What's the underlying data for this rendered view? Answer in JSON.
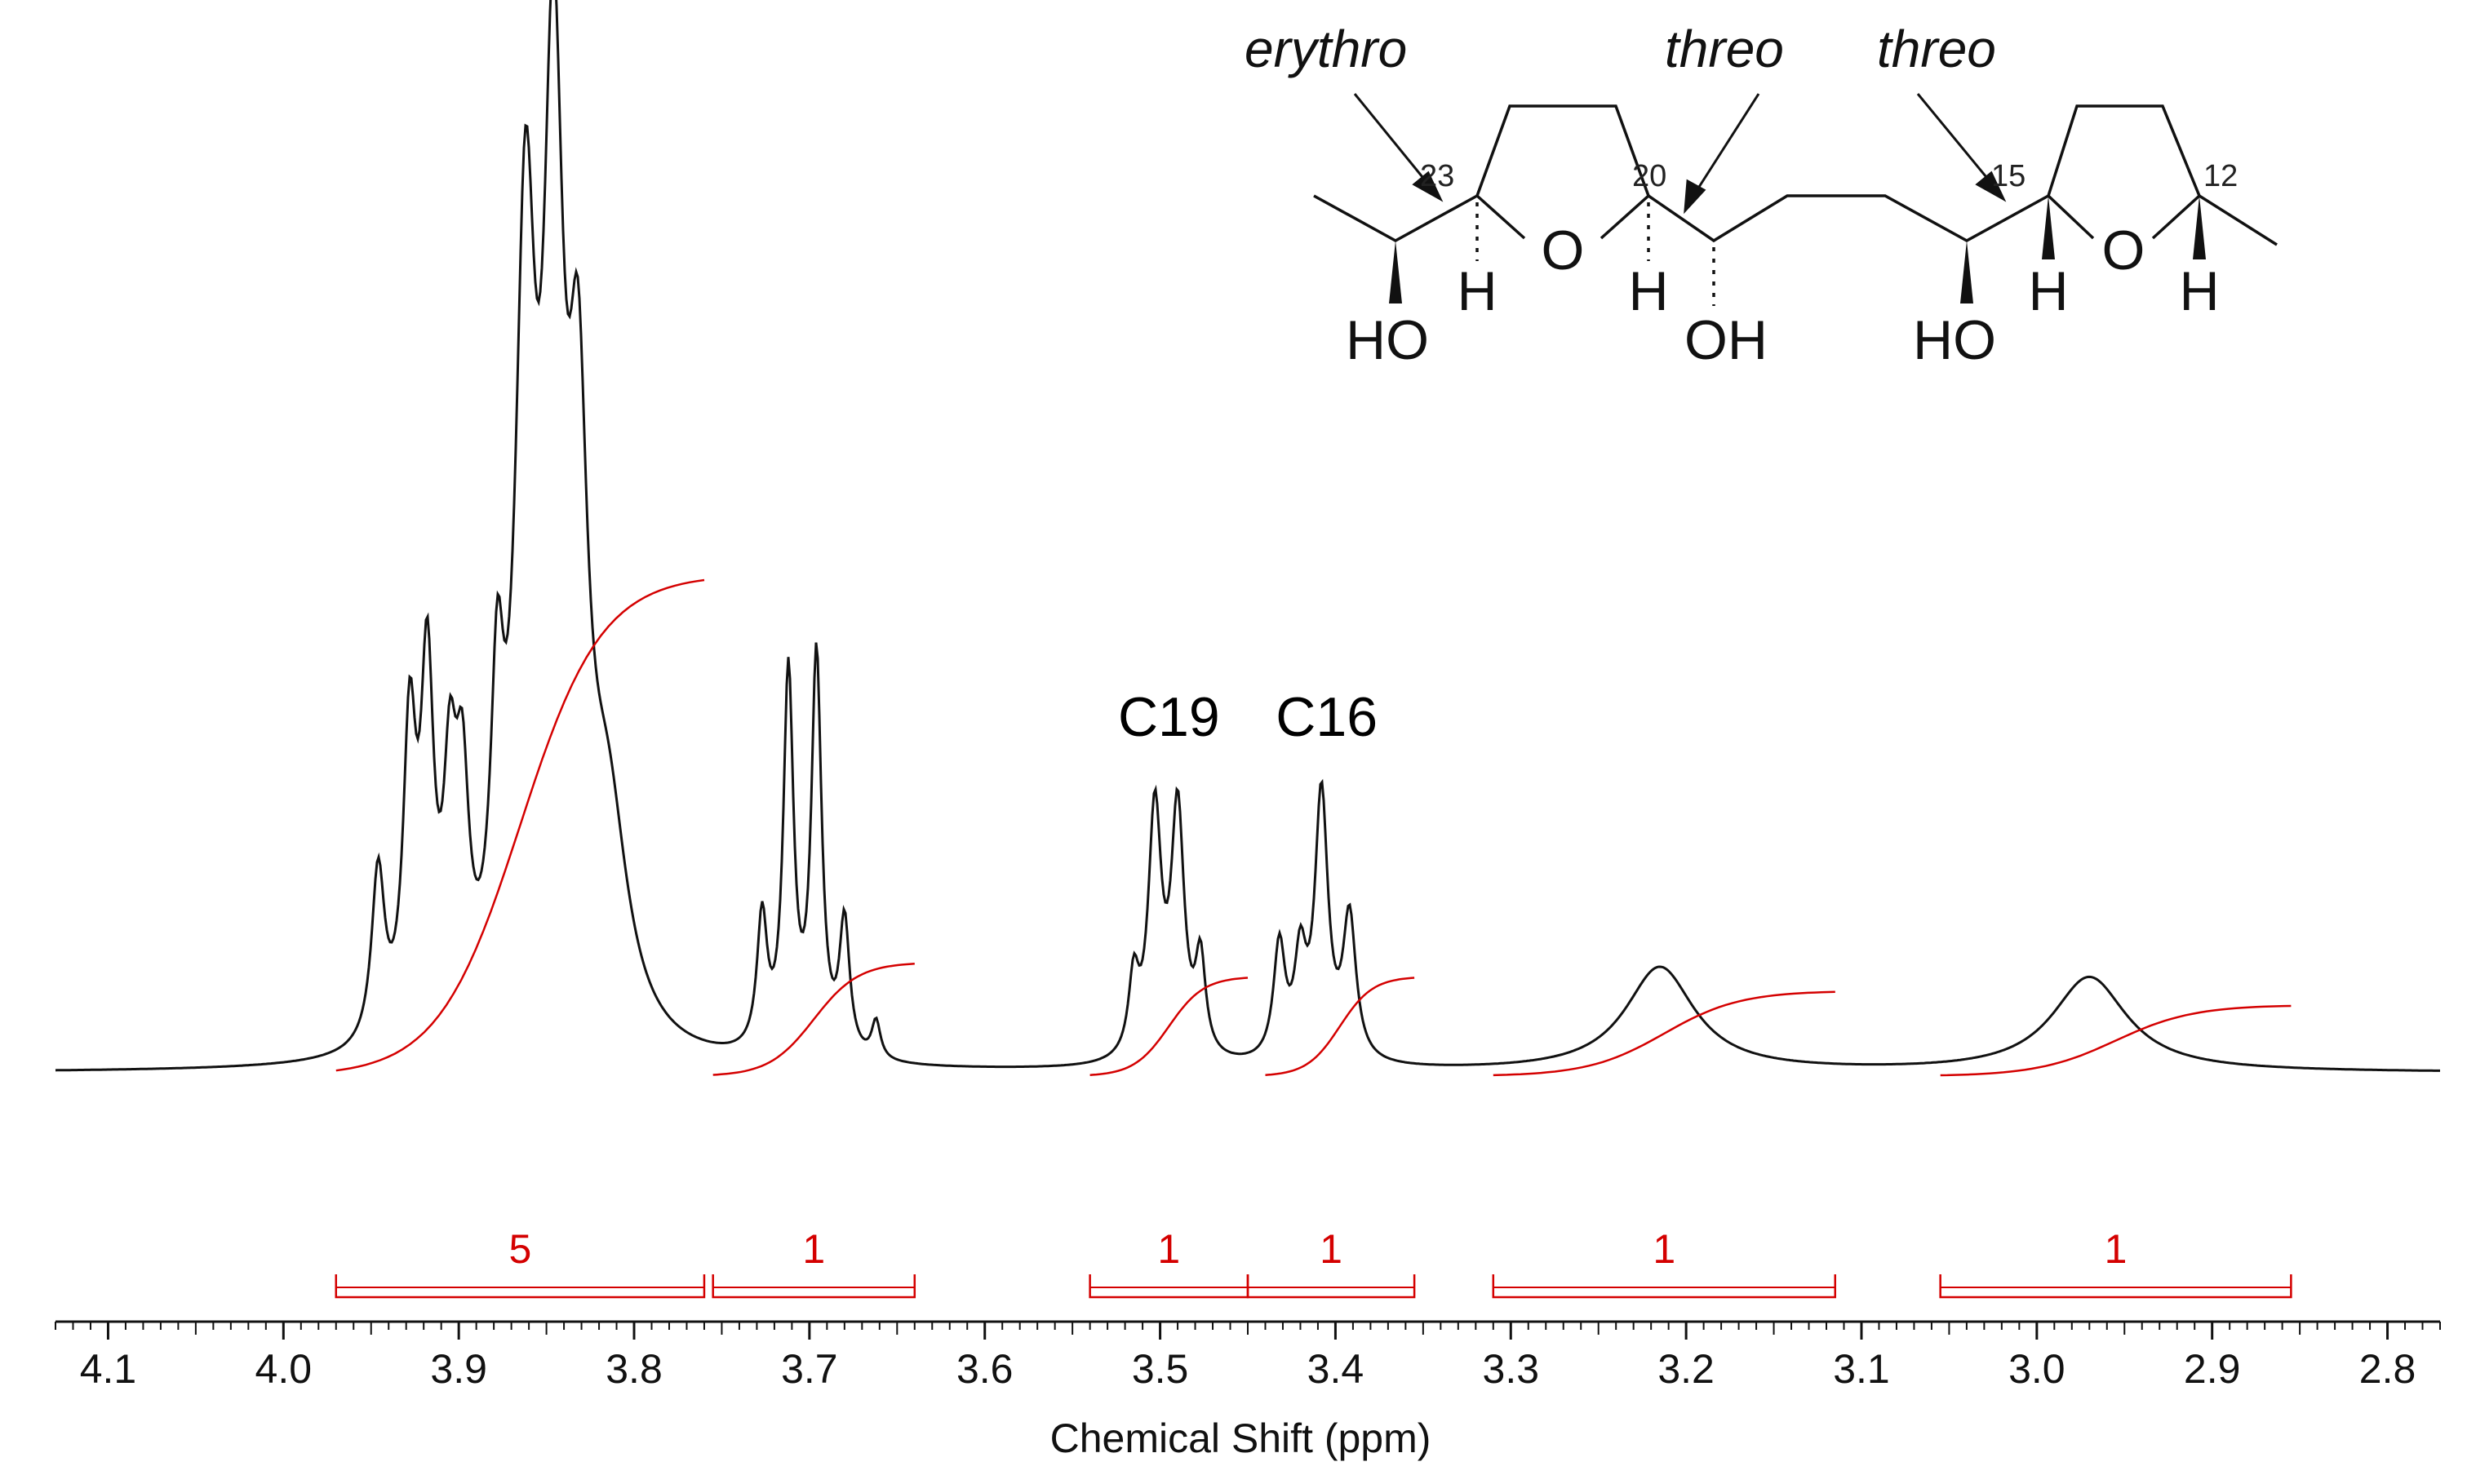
{
  "chart_data": {
    "type": "line",
    "xlabel": "Chemical Shift (ppm)",
    "ylabel": "",
    "xlim": [
      4.13,
      2.77
    ],
    "x_reversed": true,
    "ticks": [
      "4.1",
      "4.0",
      "3.9",
      "3.8",
      "3.7",
      "3.6",
      "3.5",
      "3.4",
      "3.3",
      "3.2",
      "3.1",
      "3.0",
      "2.9",
      "2.8"
    ],
    "grid": false,
    "series": [
      {
        "peaks": [
          {
            "ppm": 3.946,
            "h": 0.18,
            "w": 0.0045
          },
          {
            "ppm": 3.928,
            "h": 0.31,
            "w": 0.0045
          },
          {
            "ppm": 3.918,
            "h": 0.36,
            "w": 0.0045
          },
          {
            "ppm": 3.905,
            "h": 0.23,
            "w": 0.0045
          },
          {
            "ppm": 3.898,
            "h": 0.22,
            "w": 0.0045
          },
          {
            "ppm": 3.878,
            "h": 0.29,
            "w": 0.0045
          },
          {
            "ppm": 3.862,
            "h": 0.78,
            "w": 0.007
          },
          {
            "ppm": 3.846,
            "h": 0.91,
            "w": 0.007
          },
          {
            "ppm": 3.832,
            "h": 0.52,
            "w": 0.0065
          },
          {
            "ppm": 3.815,
            "h": 0.22,
            "w": 0.014
          },
          {
            "ppm": 3.727,
            "h": 0.14,
            "w": 0.0035
          },
          {
            "ppm": 3.712,
            "h": 0.4,
            "w": 0.0035
          },
          {
            "ppm": 3.696,
            "h": 0.42,
            "w": 0.0035
          },
          {
            "ppm": 3.68,
            "h": 0.14,
            "w": 0.0035
          },
          {
            "ppm": 3.662,
            "h": 0.04,
            "w": 0.003
          },
          {
            "ppm": 3.515,
            "h": 0.08,
            "w": 0.0035
          },
          {
            "ppm": 3.503,
            "h": 0.26,
            "w": 0.0045
          },
          {
            "ppm": 3.49,
            "h": 0.26,
            "w": 0.0045
          },
          {
            "ppm": 3.477,
            "h": 0.1,
            "w": 0.0035
          },
          {
            "ppm": 3.432,
            "h": 0.12,
            "w": 0.004
          },
          {
            "ppm": 3.42,
            "h": 0.1,
            "w": 0.004
          },
          {
            "ppm": 3.408,
            "h": 0.28,
            "w": 0.0045
          },
          {
            "ppm": 3.392,
            "h": 0.15,
            "w": 0.0045
          },
          {
            "ppm": 3.215,
            "h": 0.11,
            "w": 0.024
          },
          {
            "ppm": 2.97,
            "h": 0.1,
            "w": 0.026
          }
        ]
      }
    ],
    "integrals": [
      {
        "label": "5",
        "from": 3.97,
        "to": 3.76
      },
      {
        "label": "1",
        "from": 3.755,
        "to": 3.64
      },
      {
        "label": "1",
        "from": 3.54,
        "to": 3.45
      },
      {
        "label": "1",
        "from": 3.45,
        "to": 3.355
      },
      {
        "label": "1",
        "from": 3.31,
        "to": 3.115
      },
      {
        "label": "1",
        "from": 3.055,
        "to": 2.855
      }
    ],
    "integral_curves": [
      {
        "from": 3.97,
        "to": 3.76,
        "rise": 0.53
      },
      {
        "from": 3.755,
        "to": 3.64,
        "rise": 0.12
      },
      {
        "from": 3.54,
        "to": 3.45,
        "rise": 0.105
      },
      {
        "from": 3.44,
        "to": 3.355,
        "rise": 0.105
      },
      {
        "from": 3.31,
        "to": 3.115,
        "rise": 0.09
      },
      {
        "from": 3.055,
        "to": 2.855,
        "rise": 0.075
      }
    ],
    "annotations": [
      {
        "text": "C19",
        "ppm": 3.495
      },
      {
        "text": "C16",
        "ppm": 3.405
      }
    ]
  },
  "structure": {
    "stereo_labels": [
      "erythro",
      "threo",
      "threo"
    ],
    "carbon_numbers": [
      "23",
      "20",
      "15",
      "12"
    ],
    "atoms": {
      "o1": "O",
      "o2": "O",
      "h1": "H",
      "h2": "H",
      "h3": "H",
      "h4": "H",
      "oh1": "HO",
      "oh2": "OH",
      "oh3": "HO"
    }
  },
  "colors": {
    "spectrum": "#111111",
    "integral": "#d40000",
    "axis": "#111111"
  }
}
